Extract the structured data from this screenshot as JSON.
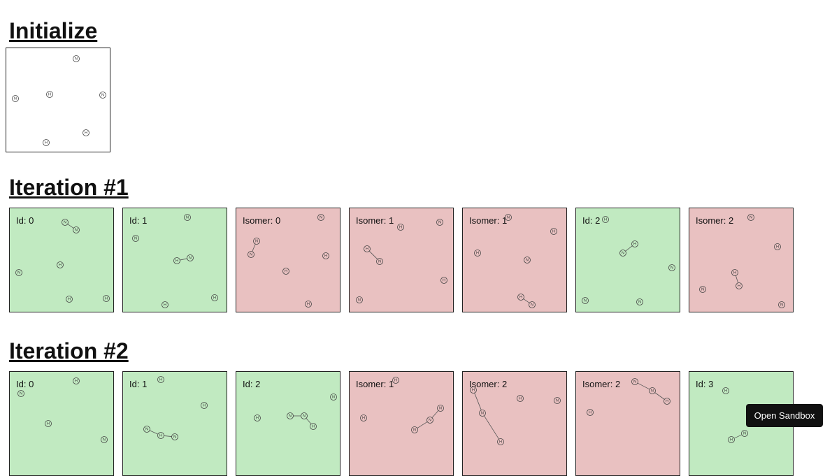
{
  "sections": {
    "initialize": {
      "title": "Initialize"
    },
    "iteration1": {
      "title": "Iteration #1"
    },
    "iteration2": {
      "title": "Iteration #2"
    }
  },
  "sandbox_button": {
    "label": "Open Sandbox"
  },
  "colors": {
    "valid": "#c1eac1",
    "isomer": "#e9c1c1",
    "initial": "#ffffff"
  },
  "atom_legend": {
    "N": "N",
    "H": "H"
  },
  "panels": {
    "init": {
      "label": "",
      "status": "initial"
    },
    "it1": [
      {
        "label": "Id: 0",
        "status": "valid"
      },
      {
        "label": "Id: 1",
        "status": "valid"
      },
      {
        "label": "Isomer: 0",
        "status": "isomer"
      },
      {
        "label": "Isomer: 1",
        "status": "isomer"
      },
      {
        "label": "Isomer: 1",
        "status": "isomer"
      },
      {
        "label": "Id: 2",
        "status": "valid"
      },
      {
        "label": "Isomer: 2",
        "status": "isomer"
      }
    ],
    "it2": [
      {
        "label": "Id: 0",
        "status": "valid"
      },
      {
        "label": "Id: 1",
        "status": "valid"
      },
      {
        "label": "Id: 2",
        "status": "valid"
      },
      {
        "label": "Isomer: 1",
        "status": "isomer"
      },
      {
        "label": "Isomer: 2",
        "status": "isomer"
      },
      {
        "label": "Isomer: 2",
        "status": "isomer"
      },
      {
        "label": "Id: 3",
        "status": "valid"
      }
    ]
  }
}
